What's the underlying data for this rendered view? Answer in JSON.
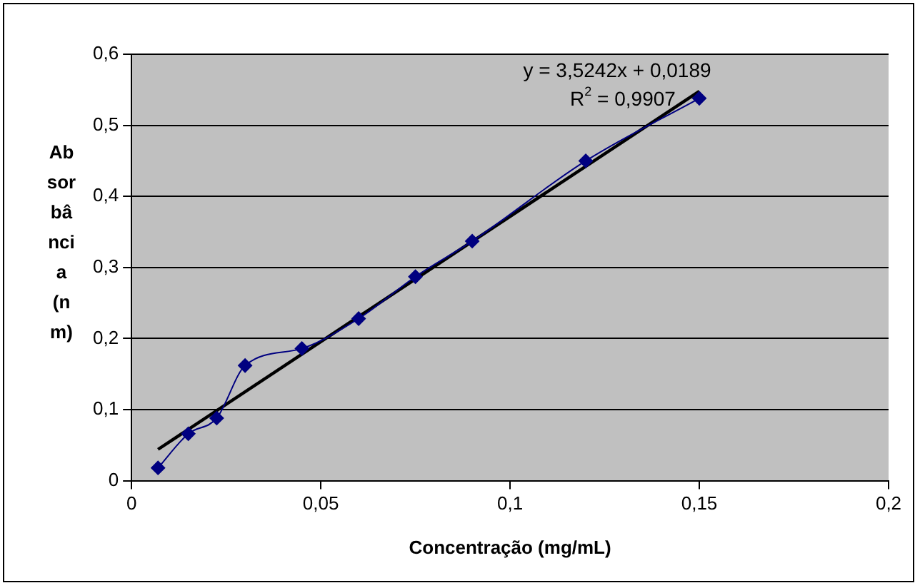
{
  "chart_data": {
    "type": "line",
    "xlabel": "Concentração (mg/mL)",
    "ylabel": "Absorbância (nm)",
    "xlim": [
      0,
      0.2
    ],
    "xticks": [
      0,
      {
        "value": 0.05,
        "label": "0,05"
      },
      {
        "value": 0.1,
        "label": "0,1"
      },
      {
        "value": 0.15,
        "label": "0,15"
      },
      {
        "value": 0.2,
        "label": "0,2"
      }
    ],
    "ylim": [
      0,
      0.6
    ],
    "yticks": [
      0,
      {
        "value": 0.1,
        "label": "0,1"
      },
      {
        "value": 0.2,
        "label": "0,2"
      },
      {
        "value": 0.3,
        "label": "0,3"
      },
      {
        "value": 0.4,
        "label": "0,4"
      },
      {
        "value": 0.5,
        "label": "0,5"
      },
      {
        "value": 0.6,
        "label": "0,6"
      }
    ],
    "grid": "y",
    "legend": false,
    "annotations": [
      "y = 3,5242x + 0,0189",
      "R$^{2}$ = 0,9907"
    ],
    "series": [
      {
        "color": "#000080",
        "marker": "diamond",
        "x": [
          0.007,
          0.015,
          0.0225,
          0.03,
          0.045,
          0.06,
          0.075,
          0.09,
          0.12,
          0.15
        ],
        "values": [
          0.018,
          0.066,
          0.088,
          0.162,
          0.186,
          0.228,
          0.287,
          0.337,
          0.45,
          0.538
        ]
      },
      {
        "color": "#000000",
        "marker": "none",
        "x": [
          0.007,
          0.15
        ],
        "values": [
          0.044,
          0.548
        ]
      }
    ]
  }
}
